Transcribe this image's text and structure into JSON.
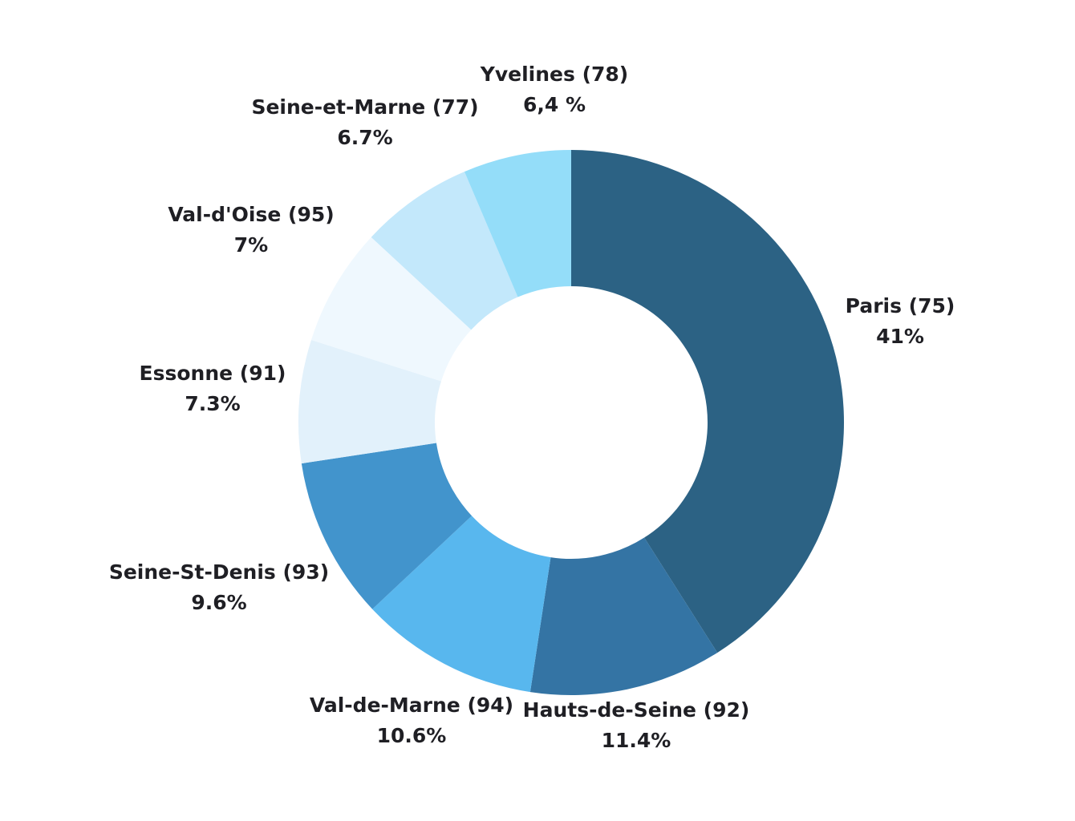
{
  "chart_data": {
    "type": "pie",
    "donut": true,
    "title": "",
    "categories": [
      "Paris (75)",
      "Hauts-de-Seine (92)",
      "Val-de-Marne (94)",
      "Seine-St-Denis (93)",
      "Essonne (91)",
      "Val-d'Oise (95)",
      "Seine-et-Marne (77)",
      "Yvelines (78)"
    ],
    "values": [
      41,
      11.4,
      10.6,
      9.6,
      7.3,
      7,
      6.7,
      6.4
    ],
    "value_labels": [
      "41%",
      "11.4%",
      "10.6%",
      "9.6%",
      "7.3%",
      "7%",
      "6.7%",
      "6,4 %"
    ],
    "colors": [
      "#2c6284",
      "#3474a4",
      "#58b7ee",
      "#4294cc",
      "#e2f1fb",
      "#eff8fe",
      "#c3e8fb",
      "#94ddf9"
    ],
    "label_color": "#1f1f24",
    "start_angle": "12 o'clock",
    "direction": "clockwise",
    "legend": "none",
    "labels_placement": "outside"
  }
}
